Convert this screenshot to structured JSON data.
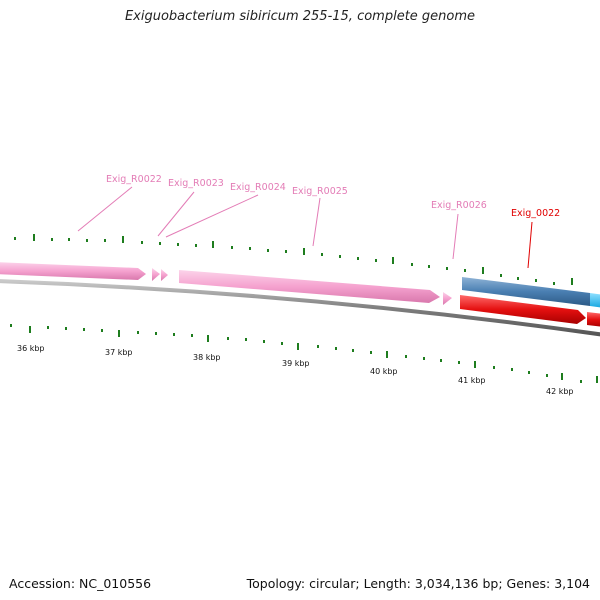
{
  "title": "Exiguobacterium sibiricum 255-15, complete genome",
  "footer": {
    "accession": "Accession: NC_010556",
    "summary": "Topology: circular; Length: 3,034,136 bp; Genes: 3,104"
  },
  "colors": {
    "rna_gene": "#f5a2cf",
    "rna_label": "#e37cb6",
    "cds_top": "#4a7fb2",
    "cds_top_alt": "#29b9ee",
    "cds_bottom": "#e41010",
    "cds_label": "#e00000",
    "backbone": "#7f7f7f",
    "tick": "#1e7d1e"
  },
  "kbp_labels": [
    "36 kbp",
    "37 kbp",
    "38 kbp",
    "39 kbp",
    "40 kbp",
    "41 kbp",
    "42 kbp"
  ],
  "rna_labels": [
    "Exig_R0022",
    "Exig_R0023",
    "Exig_R0024",
    "Exig_R0025",
    "Exig_R0026"
  ],
  "cds_labels": [
    "Exig_0022"
  ]
}
